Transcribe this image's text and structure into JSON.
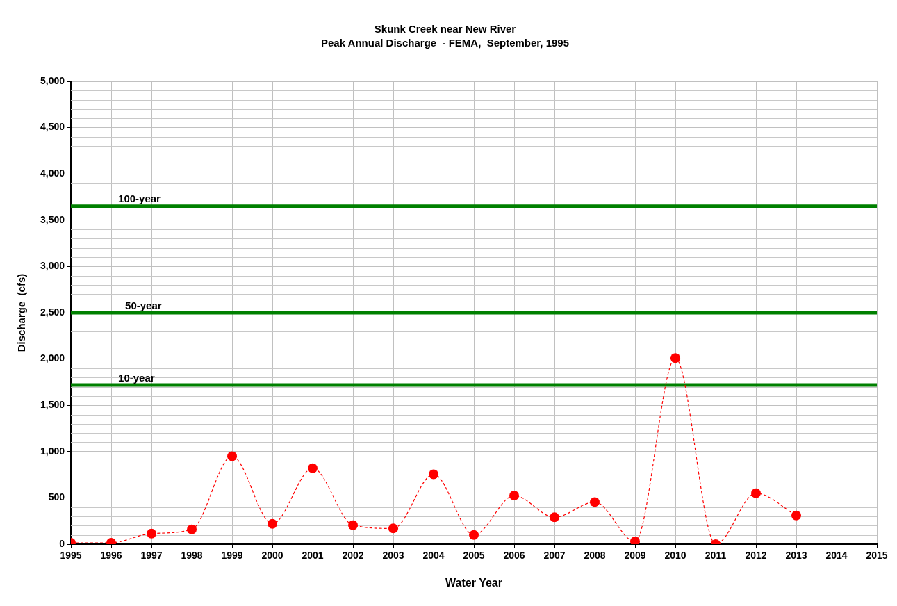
{
  "chart_data": {
    "type": "line",
    "title": "Skunk Creek near New River",
    "subtitle": "Peak Annual Discharge  - FEMA,  September, 1995",
    "xlabel": "Water Year",
    "ylabel": "Discharge  (cfs)",
    "x": [
      1995,
      1996,
      1997,
      1998,
      1999,
      2000,
      2001,
      2002,
      2003,
      2004,
      2005,
      2006,
      2007,
      2008,
      2009,
      2010,
      2011,
      2012,
      2013
    ],
    "series": [
      {
        "color": "#ff0000",
        "values": [
          15,
          15,
          115,
          160,
          950,
          220,
          820,
          205,
          170,
          755,
          100,
          525,
          290,
          455,
          30,
          2010,
          0,
          550,
          310
        ]
      }
    ],
    "xlim": [
      1995,
      2015
    ],
    "xticks": [
      1995,
      1996,
      1997,
      1998,
      1999,
      2000,
      2001,
      2002,
      2003,
      2004,
      2005,
      2006,
      2007,
      2008,
      2009,
      2010,
      2011,
      2012,
      2013,
      2014,
      2015
    ],
    "ylim": [
      0,
      5000
    ],
    "yticks": [
      0,
      500,
      {
        "value": 1000,
        "label": "1,000"
      },
      {
        "value": 1500,
        "label": "1,500"
      },
      {
        "value": 2000,
        "label": "2,000"
      },
      {
        "value": 2500,
        "label": "2,500"
      },
      {
        "value": 3000,
        "label": "3,000"
      },
      {
        "value": 3500,
        "label": "3,500"
      },
      {
        "value": 4000,
        "label": "4,000"
      },
      {
        "value": 4500,
        "label": "4,500"
      },
      {
        "value": 5000,
        "label": "5,000"
      }
    ],
    "ref_lines": [
      {
        "axis": "y",
        "value": 3650,
        "label": "100-year",
        "color": "#008000"
      },
      {
        "axis": "y",
        "value": 2500,
        "label": "50-year",
        "color": "#008000"
      },
      {
        "axis": "y",
        "value": 1720,
        "label": "10-year",
        "color": "#008000"
      }
    ],
    "grid": true,
    "legend": false,
    "marker": "circle",
    "line_style": "dashed"
  }
}
